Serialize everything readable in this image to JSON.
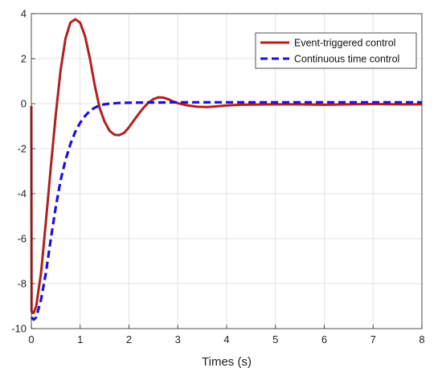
{
  "chart_data": {
    "type": "line",
    "xlabel": "Times (s)",
    "ylabel": "",
    "xlim": [
      0,
      8
    ],
    "ylim": [
      -10,
      4
    ],
    "xticks": [
      "0",
      "1",
      "2",
      "3",
      "4",
      "5",
      "6",
      "7",
      "8"
    ],
    "yticks": [
      "-10",
      "-8",
      "-6",
      "-4",
      "-2",
      "0",
      "2",
      "4"
    ],
    "grid": true,
    "legend_position": "top-right",
    "series": [
      {
        "name": "Event-triggered control",
        "color": "#b0201f",
        "style": "solid",
        "x": [
          0,
          0.005,
          0.02,
          0.05,
          0.1,
          0.2,
          0.3,
          0.4,
          0.5,
          0.6,
          0.7,
          0.8,
          0.9,
          1.0,
          1.1,
          1.2,
          1.3,
          1.4,
          1.5,
          1.6,
          1.7,
          1.8,
          1.9,
          2.0,
          2.1,
          2.2,
          2.3,
          2.4,
          2.5,
          2.6,
          2.7,
          2.8,
          2.9,
          3.0,
          3.2,
          3.4,
          3.6,
          3.8,
          4.0,
          4.3,
          4.6,
          5.0,
          5.5,
          6.0,
          6.5,
          7.0,
          7.5,
          8.0
        ],
        "y": [
          -0.1,
          -9.2,
          -9.3,
          -9.3,
          -9.0,
          -7.5,
          -5.2,
          -2.8,
          -0.5,
          1.5,
          2.9,
          3.6,
          3.75,
          3.6,
          3.0,
          2.0,
          0.8,
          -0.2,
          -0.8,
          -1.2,
          -1.38,
          -1.4,
          -1.3,
          -1.05,
          -0.75,
          -0.45,
          -0.18,
          0.05,
          0.2,
          0.28,
          0.27,
          0.2,
          0.1,
          0.02,
          -0.08,
          -0.14,
          -0.15,
          -0.12,
          -0.08,
          -0.05,
          -0.04,
          -0.03,
          -0.03,
          -0.05,
          -0.03,
          -0.02,
          -0.03,
          -0.03
        ]
      },
      {
        "name": "Continuous time control",
        "color": "#1e10d8",
        "style": "dashed",
        "x": [
          0,
          0.05,
          0.1,
          0.2,
          0.3,
          0.4,
          0.5,
          0.6,
          0.7,
          0.8,
          0.9,
          1.0,
          1.1,
          1.2,
          1.3,
          1.4,
          1.5,
          1.6,
          1.8,
          2.0,
          2.3,
          2.6,
          3.0,
          3.5,
          4.0,
          5.0,
          6.0,
          7.0,
          8.0
        ],
        "y": [
          -9.5,
          -9.6,
          -9.5,
          -8.7,
          -7.5,
          -6.0,
          -4.6,
          -3.4,
          -2.5,
          -1.8,
          -1.25,
          -0.85,
          -0.55,
          -0.32,
          -0.18,
          -0.08,
          -0.03,
          0.0,
          0.03,
          0.04,
          0.05,
          0.05,
          0.06,
          0.06,
          0.06,
          0.06,
          0.06,
          0.06,
          0.06
        ]
      }
    ]
  }
}
